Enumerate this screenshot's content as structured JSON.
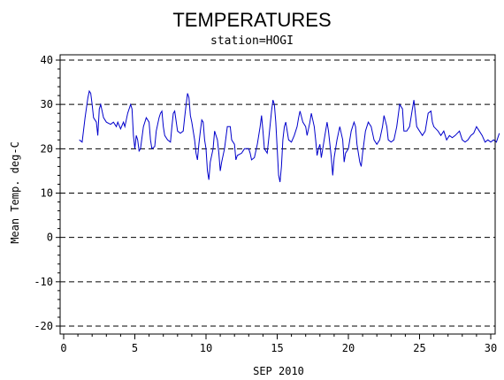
{
  "chart_data": {
    "type": "line",
    "title": "TEMPERATURES",
    "subtitle": "station=HOGI",
    "xlabel": "SEP 2010",
    "ylabel": "Mean Temp. deg-C",
    "xlim": [
      0,
      30
    ],
    "ylim": [
      -20,
      40
    ],
    "x_ticks": [
      0,
      5,
      10,
      15,
      20,
      25,
      30
    ],
    "y_ticks": [
      -20,
      -10,
      0,
      10,
      20,
      30,
      40
    ],
    "grid": "dashed horizontal at y ticks",
    "line_color": "#0000cc",
    "series": [
      {
        "values": [
          [
            1.1,
            22
          ],
          [
            1.3,
            21.5
          ],
          [
            1.5,
            27
          ],
          [
            1.7,
            31.5
          ],
          [
            1.8,
            33
          ],
          [
            1.9,
            32.5
          ],
          [
            2.0,
            30
          ],
          [
            2.1,
            27
          ],
          [
            2.3,
            26
          ],
          [
            2.4,
            23
          ],
          [
            2.5,
            29
          ],
          [
            2.6,
            30
          ],
          [
            2.7,
            28.5
          ],
          [
            2.8,
            27
          ],
          [
            3.0,
            26
          ],
          [
            3.3,
            25.5
          ],
          [
            3.5,
            26
          ],
          [
            3.7,
            25
          ],
          [
            3.8,
            26
          ],
          [
            4.0,
            24.5
          ],
          [
            4.2,
            26
          ],
          [
            4.3,
            25
          ],
          [
            4.5,
            28
          ],
          [
            4.7,
            30
          ],
          [
            4.8,
            29
          ],
          [
            4.9,
            23
          ],
          [
            5.0,
            20
          ],
          [
            5.1,
            23
          ],
          [
            5.2,
            22
          ],
          [
            5.3,
            19.5
          ],
          [
            5.4,
            20
          ],
          [
            5.6,
            25
          ],
          [
            5.8,
            27
          ],
          [
            6.0,
            26
          ],
          [
            6.1,
            22
          ],
          [
            6.2,
            20
          ],
          [
            6.4,
            20.5
          ],
          [
            6.5,
            24
          ],
          [
            6.7,
            27
          ],
          [
            6.8,
            28
          ],
          [
            6.9,
            28.5
          ],
          [
            7.0,
            25
          ],
          [
            7.1,
            23
          ],
          [
            7.3,
            22
          ],
          [
            7.5,
            21.5
          ],
          [
            7.6,
            25
          ],
          [
            7.7,
            28
          ],
          [
            7.8,
            28.5
          ],
          [
            8.0,
            24
          ],
          [
            8.2,
            23.5
          ],
          [
            8.4,
            24
          ],
          [
            8.5,
            27
          ],
          [
            8.6,
            30
          ],
          [
            8.7,
            32.5
          ],
          [
            8.8,
            31.5
          ],
          [
            8.9,
            27.5
          ],
          [
            9.0,
            26
          ],
          [
            9.2,
            22
          ],
          [
            9.3,
            19
          ],
          [
            9.4,
            17.5
          ],
          [
            9.5,
            21
          ],
          [
            9.6,
            24
          ],
          [
            9.7,
            26.5
          ],
          [
            9.8,
            26
          ],
          [
            9.9,
            22
          ],
          [
            10.0,
            20
          ],
          [
            10.1,
            15
          ],
          [
            10.2,
            13
          ],
          [
            10.3,
            17
          ],
          [
            10.5,
            20
          ],
          [
            10.6,
            24
          ],
          [
            10.8,
            22
          ],
          [
            10.9,
            19
          ],
          [
            11.0,
            15
          ],
          [
            11.1,
            17
          ],
          [
            11.3,
            20
          ],
          [
            11.5,
            25
          ],
          [
            11.7,
            25
          ],
          [
            11.8,
            22
          ],
          [
            12.0,
            21
          ],
          [
            12.1,
            17.5
          ],
          [
            12.2,
            18.5
          ],
          [
            12.5,
            19
          ],
          [
            12.7,
            20
          ],
          [
            13.0,
            20
          ],
          [
            13.1,
            19
          ],
          [
            13.2,
            17.5
          ],
          [
            13.4,
            18
          ],
          [
            13.6,
            21
          ],
          [
            13.8,
            25
          ],
          [
            13.9,
            27.5
          ],
          [
            14.0,
            24
          ],
          [
            14.1,
            20
          ],
          [
            14.3,
            19
          ],
          [
            14.4,
            22
          ],
          [
            14.6,
            28.5
          ],
          [
            14.7,
            31
          ],
          [
            14.8,
            30
          ],
          [
            14.9,
            26
          ],
          [
            15.0,
            20
          ],
          [
            15.1,
            14
          ],
          [
            15.2,
            12.5
          ],
          [
            15.3,
            16
          ],
          [
            15.4,
            22
          ],
          [
            15.5,
            25
          ],
          [
            15.6,
            26
          ],
          [
            15.7,
            24
          ],
          [
            15.8,
            22
          ],
          [
            16.0,
            21.5
          ],
          [
            16.2,
            23
          ],
          [
            16.4,
            25
          ],
          [
            16.5,
            27
          ],
          [
            16.6,
            28.5
          ],
          [
            16.8,
            26
          ],
          [
            17.0,
            25
          ],
          [
            17.1,
            23
          ],
          [
            17.3,
            26
          ],
          [
            17.4,
            28
          ],
          [
            17.6,
            25
          ],
          [
            17.7,
            22
          ],
          [
            17.8,
            18.5
          ],
          [
            17.9,
            20
          ],
          [
            18.0,
            21
          ],
          [
            18.1,
            18
          ],
          [
            18.3,
            22
          ],
          [
            18.5,
            26
          ],
          [
            18.6,
            24
          ],
          [
            18.8,
            18
          ],
          [
            18.9,
            14
          ],
          [
            19.0,
            18
          ],
          [
            19.2,
            22
          ],
          [
            19.4,
            25
          ],
          [
            19.6,
            22
          ],
          [
            19.7,
            17
          ],
          [
            19.8,
            19
          ],
          [
            20.0,
            20
          ],
          [
            20.2,
            24
          ],
          [
            20.4,
            26
          ],
          [
            20.5,
            25
          ],
          [
            20.6,
            21
          ],
          [
            20.8,
            17
          ],
          [
            20.9,
            16
          ],
          [
            21.0,
            19
          ],
          [
            21.2,
            24
          ],
          [
            21.4,
            26
          ],
          [
            21.6,
            25
          ],
          [
            21.8,
            22
          ],
          [
            22.0,
            21
          ],
          [
            22.2,
            22
          ],
          [
            22.4,
            25
          ],
          [
            22.5,
            27.5
          ],
          [
            22.7,
            25
          ],
          [
            22.8,
            22
          ],
          [
            23.0,
            21.5
          ],
          [
            23.2,
            22
          ],
          [
            23.4,
            25
          ],
          [
            23.6,
            30
          ],
          [
            23.8,
            29
          ],
          [
            23.9,
            24
          ],
          [
            24.1,
            24
          ],
          [
            24.3,
            25
          ],
          [
            24.5,
            29
          ],
          [
            24.6,
            31
          ],
          [
            24.7,
            28
          ],
          [
            24.8,
            25
          ],
          [
            25.0,
            24
          ],
          [
            25.2,
            23
          ],
          [
            25.4,
            24
          ],
          [
            25.6,
            28
          ],
          [
            25.8,
            28.5
          ],
          [
            25.9,
            26
          ],
          [
            26.0,
            25
          ],
          [
            26.3,
            24
          ],
          [
            26.5,
            23
          ],
          [
            26.7,
            24
          ],
          [
            26.9,
            22
          ],
          [
            27.1,
            23
          ],
          [
            27.3,
            22.5
          ],
          [
            27.5,
            23
          ],
          [
            27.8,
            24
          ],
          [
            28.0,
            22
          ],
          [
            28.2,
            21.5
          ],
          [
            28.4,
            22
          ],
          [
            28.6,
            23
          ],
          [
            28.8,
            23.5
          ],
          [
            29.0,
            25
          ],
          [
            29.2,
            24
          ],
          [
            29.4,
            23
          ],
          [
            29.6,
            21.5
          ],
          [
            29.8,
            22
          ],
          [
            30.0,
            21.5
          ],
          [
            30.2,
            22
          ],
          [
            30.4,
            21.5
          ],
          [
            30.6,
            23.5
          ]
        ]
      }
    ]
  }
}
